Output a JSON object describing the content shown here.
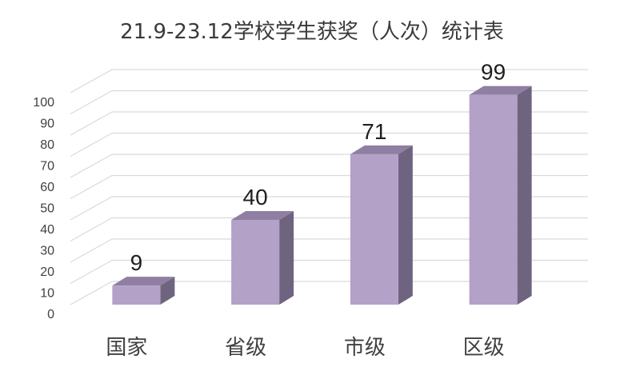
{
  "chart_data": {
    "type": "bar",
    "title": "21.9-23.12学校学生获奖（人次）统计表",
    "categories": [
      "国家",
      "省级",
      "市级",
      "区级"
    ],
    "values": [
      9,
      40,
      71,
      99
    ],
    "data_labels": [
      "9",
      "40",
      "71",
      "99"
    ],
    "xlabel": "",
    "ylabel": "",
    "ylim": [
      0,
      100
    ],
    "yticks": [
      "0",
      "10",
      "20",
      "30",
      "40",
      "50",
      "60",
      "70",
      "80",
      "90",
      "100"
    ],
    "grid": true,
    "legend": "none",
    "style": "3d-column",
    "colors": {
      "bar_front": "#b3a1c8",
      "bar_top": "#8f7fa2",
      "bar_side": "#6f6480",
      "grid": "#d9d9d9"
    }
  }
}
